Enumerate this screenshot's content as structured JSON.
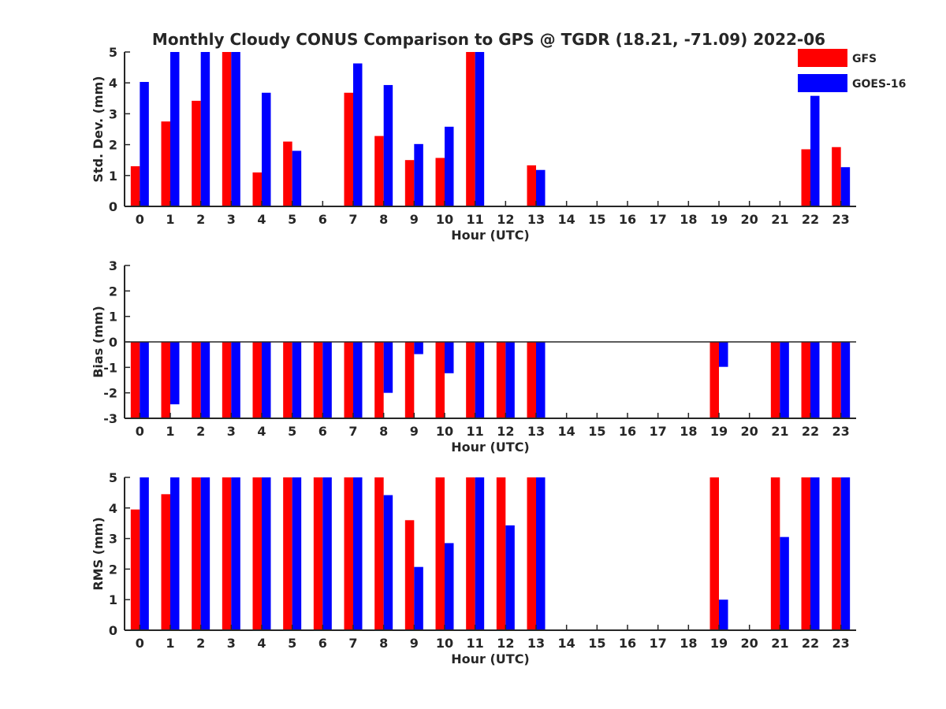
{
  "figure": {
    "title": "Monthly Cloudy CONUS Comparison to GPS @ TGDR (18.21, -71.09) 2022-06",
    "legend": {
      "position": "top-right",
      "entries": [
        {
          "name": "GFS",
          "color": "#ff0000"
        },
        {
          "name": "GOES-16",
          "color": "#0000ff"
        }
      ]
    }
  },
  "chart_data": [
    {
      "type": "bar",
      "xlabel": "Hour (UTC)",
      "ylabel": "Std. Dev. (mm)",
      "ylim": [
        0,
        5
      ],
      "yticks": [
        0,
        1,
        2,
        3,
        4,
        5
      ],
      "categories": [
        "0",
        "1",
        "2",
        "3",
        "4",
        "5",
        "6",
        "7",
        "8",
        "9",
        "10",
        "11",
        "12",
        "13",
        "14",
        "15",
        "16",
        "17",
        "18",
        "19",
        "20",
        "21",
        "22",
        "23"
      ],
      "series": [
        {
          "name": "GFS",
          "color": "#ff0000",
          "values": [
            1.3,
            2.75,
            3.42,
            5,
            1.1,
            2.1,
            null,
            3.68,
            2.28,
            1.5,
            1.57,
            5,
            null,
            1.33,
            null,
            null,
            null,
            null,
            null,
            null,
            null,
            null,
            1.85,
            1.92
          ]
        },
        {
          "name": "GOES-16",
          "color": "#0000ff",
          "values": [
            4.03,
            5,
            5,
            5,
            3.68,
            1.8,
            null,
            4.63,
            3.93,
            2.02,
            2.58,
            5,
            null,
            1.18,
            null,
            null,
            null,
            null,
            null,
            null,
            null,
            null,
            3.58,
            1.27
          ]
        }
      ]
    },
    {
      "type": "bar",
      "xlabel": "Hour (UTC)",
      "ylabel": "Bias (mm)",
      "ylim": [
        -3,
        3
      ],
      "yticks": [
        -3,
        -2,
        -1,
        0,
        1,
        2,
        3
      ],
      "categories": [
        "0",
        "1",
        "2",
        "3",
        "4",
        "5",
        "6",
        "7",
        "8",
        "9",
        "10",
        "11",
        "12",
        "13",
        "14",
        "15",
        "16",
        "17",
        "18",
        "19",
        "20",
        "21",
        "22",
        "23"
      ],
      "series": [
        {
          "name": "GFS",
          "color": "#ff0000",
          "values": [
            -3,
            -3,
            -3,
            -3,
            -3,
            -3,
            -3,
            -3,
            -3,
            -3,
            -3,
            -3,
            -3,
            -3,
            null,
            null,
            null,
            null,
            null,
            -3,
            null,
            -3,
            -3,
            -3
          ]
        },
        {
          "name": "GOES-16",
          "color": "#0000ff",
          "values": [
            -3,
            -2.45,
            -3,
            -3,
            -3,
            -3,
            -3,
            -3,
            -2.0,
            -0.48,
            -1.23,
            -3,
            -3,
            -3,
            null,
            null,
            null,
            null,
            null,
            -0.98,
            null,
            -3,
            -3,
            -3
          ]
        }
      ]
    },
    {
      "type": "bar",
      "xlabel": "Hour (UTC)",
      "ylabel": "RMS (mm)",
      "ylim": [
        0,
        5
      ],
      "yticks": [
        0,
        1,
        2,
        3,
        4,
        5
      ],
      "categories": [
        "0",
        "1",
        "2",
        "3",
        "4",
        "5",
        "6",
        "7",
        "8",
        "9",
        "10",
        "11",
        "12",
        "13",
        "14",
        "15",
        "16",
        "17",
        "18",
        "19",
        "20",
        "21",
        "22",
        "23"
      ],
      "series": [
        {
          "name": "GFS",
          "color": "#ff0000",
          "values": [
            3.95,
            4.45,
            5,
            5,
            5,
            5,
            5,
            5,
            5,
            3.6,
            5,
            5,
            5,
            5,
            null,
            null,
            null,
            null,
            null,
            5,
            null,
            5,
            5,
            5
          ]
        },
        {
          "name": "GOES-16",
          "color": "#0000ff",
          "values": [
            5,
            5,
            5,
            5,
            5,
            5,
            5,
            5,
            4.42,
            2.07,
            2.85,
            5,
            3.43,
            5,
            null,
            null,
            null,
            null,
            null,
            1.0,
            null,
            3.05,
            5,
            5
          ]
        }
      ]
    }
  ]
}
